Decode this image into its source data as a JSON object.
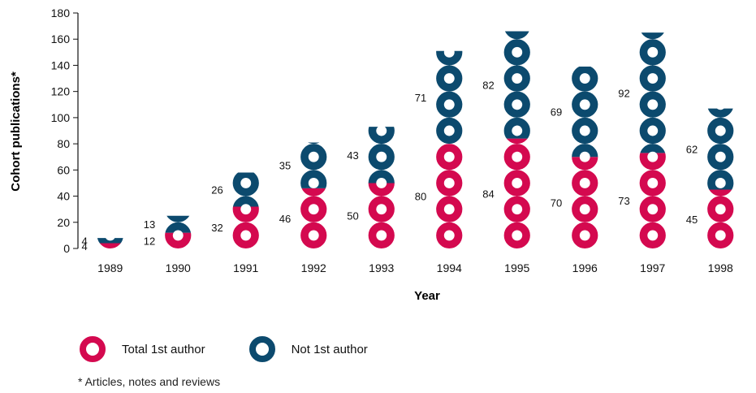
{
  "chart_data": {
    "type": "bar",
    "title": "",
    "xlabel": "Year",
    "ylabel": "Cohort publications*",
    "ylim": [
      0,
      180
    ],
    "yticks": [
      0,
      20,
      40,
      60,
      80,
      100,
      120,
      140,
      160,
      180
    ],
    "categories": [
      "1989",
      "1990",
      "1991",
      "1992",
      "1993",
      "1994",
      "1995",
      "1996",
      "1997",
      "1998"
    ],
    "stacked": true,
    "series": [
      {
        "name": "Total 1st author",
        "color": "#d4094f",
        "values": [
          4,
          12,
          32,
          46,
          50,
          80,
          84,
          70,
          73,
          45
        ]
      },
      {
        "name": "Not 1st author",
        "color": "#0c4a6e",
        "values": [
          4,
          13,
          26,
          35,
          43,
          71,
          82,
          69,
          92,
          62
        ]
      }
    ],
    "legend_position": "bottom"
  },
  "footnote": "* Articles, notes and reviews"
}
